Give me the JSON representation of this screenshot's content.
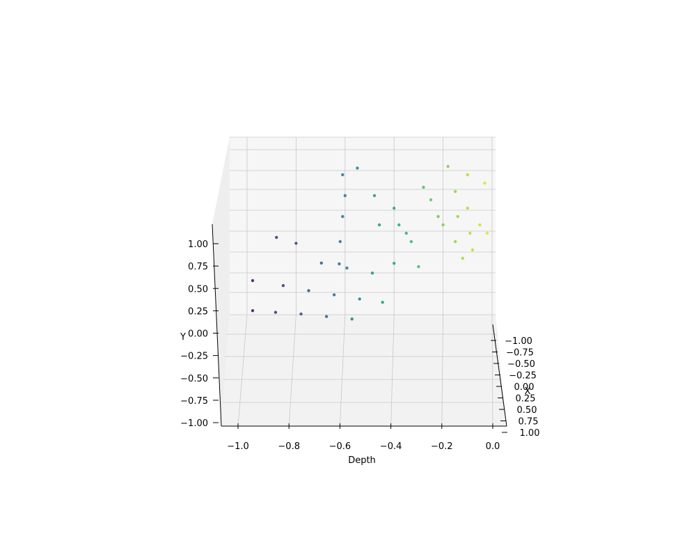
{
  "chart_data": {
    "type": "scatter",
    "projection": "3d",
    "colormap": "viridis",
    "color_by": "depth",
    "colors": {
      "pane_back": "#f6f6f6",
      "pane_side": "#eeeeee",
      "pane_floor": "#f2f2f2",
      "grid": "#c8c8c8",
      "axis": "#000000"
    },
    "axes": {
      "depth": {
        "label": "Depth",
        "range": [
          -1.06,
          0.02
        ],
        "ticks": [
          -1.0,
          -0.8,
          -0.6,
          -0.4,
          -0.2,
          0.0
        ],
        "tick_labels": [
          "−1.0",
          "−0.8",
          "−0.6",
          "−0.4",
          "−0.2",
          "0.0"
        ]
      },
      "y": {
        "label": "Y",
        "range": [
          -1.0,
          1.0
        ],
        "ticks": [
          1.0,
          0.75,
          0.5,
          0.25,
          0.0,
          -0.25,
          -0.5,
          -0.75,
          -1.0
        ],
        "tick_labels": [
          "1.00",
          "0.75",
          "0.50",
          "0.25",
          "0.00",
          "−0.25",
          "−0.50",
          "−0.75",
          "−1.00"
        ]
      },
      "x": {
        "label": "X",
        "range": [
          -1.0,
          1.0
        ],
        "ticks": [
          -1.0,
          -0.75,
          -0.5,
          -0.25,
          0.0,
          0.25,
          0.5,
          0.75,
          1.0
        ],
        "tick_labels": [
          "−1.00",
          "−0.75",
          "−0.50",
          "−0.25",
          "0.00",
          "0.25",
          "0.50",
          "0.75",
          "1.00"
        ]
      }
    },
    "grid": true,
    "series": [
      {
        "values": [
          {
            "depth": -0.88,
            "y": 0.05
          },
          {
            "depth": -0.8,
            "y": -0.02
          },
          {
            "depth": -0.7,
            "y": -0.09
          },
          {
            "depth": -0.6,
            "y": -0.15
          },
          {
            "depth": -0.5,
            "y": -0.21
          },
          {
            "depth": -0.4,
            "y": -0.26
          },
          {
            "depth": -0.3,
            "y": -0.3
          },
          {
            "depth": -0.97,
            "y": -0.3
          },
          {
            "depth": -0.85,
            "y": -0.36
          },
          {
            "depth": -0.75,
            "y": -0.42
          },
          {
            "depth": -0.65,
            "y": -0.47
          },
          {
            "depth": -0.55,
            "y": -0.52
          },
          {
            "depth": -0.46,
            "y": -0.56
          },
          {
            "depth": -0.97,
            "y": -0.66
          },
          {
            "depth": -0.88,
            "y": -0.68
          },
          {
            "depth": -0.78,
            "y": -0.7
          },
          {
            "depth": -0.68,
            "y": -0.73
          },
          {
            "depth": -0.58,
            "y": -0.76
          },
          {
            "depth": -0.61,
            "y": 0.8
          },
          {
            "depth": -0.6,
            "y": 0.55
          },
          {
            "depth": -0.61,
            "y": 0.3
          },
          {
            "depth": -0.62,
            "y": 0.0
          },
          {
            "depth": -0.63,
            "y": -0.1
          },
          {
            "depth": -0.55,
            "y": 0.88
          },
          {
            "depth": -0.48,
            "y": 0.55
          },
          {
            "depth": -0.46,
            "y": 0.2
          },
          {
            "depth": -0.4,
            "y": 0.4
          },
          {
            "depth": -0.38,
            "y": 0.2
          },
          {
            "depth": -0.35,
            "y": 0.1
          },
          {
            "depth": -0.33,
            "y": 0.0
          },
          {
            "depth": -0.28,
            "y": 0.65
          },
          {
            "depth": -0.25,
            "y": 0.5
          },
          {
            "depth": -0.22,
            "y": 0.3
          },
          {
            "depth": -0.2,
            "y": 0.2
          },
          {
            "depth": -0.18,
            "y": 0.9
          },
          {
            "depth": -0.15,
            "y": 0.6
          },
          {
            "depth": -0.14,
            "y": 0.3
          },
          {
            "depth": -0.15,
            "y": 0.0
          },
          {
            "depth": -0.12,
            "y": -0.2
          },
          {
            "depth": -0.1,
            "y": 0.8
          },
          {
            "depth": -0.1,
            "y": 0.4
          },
          {
            "depth": -0.09,
            "y": 0.1
          },
          {
            "depth": -0.08,
            "y": -0.1
          },
          {
            "depth": -0.05,
            "y": 0.2
          },
          {
            "depth": -0.03,
            "y": 0.7
          },
          {
            "depth": -0.02,
            "y": 0.1
          }
        ]
      }
    ]
  }
}
